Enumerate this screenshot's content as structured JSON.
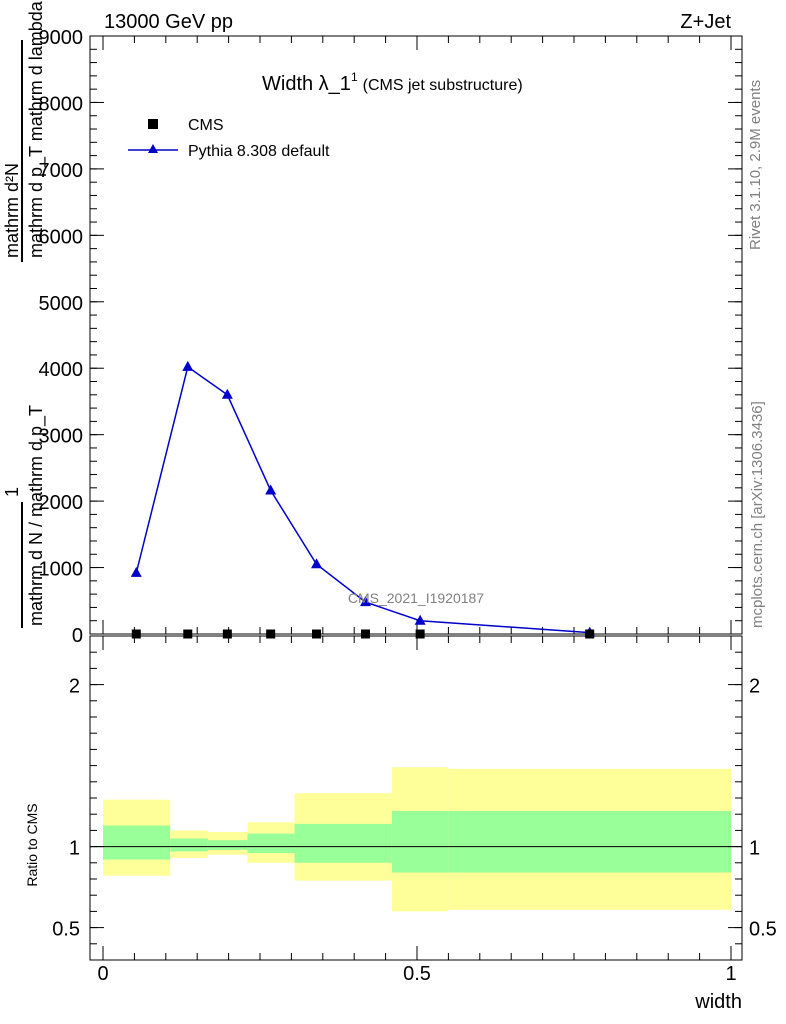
{
  "chart_data": {
    "type": "line",
    "header_left": "13000 GeV pp",
    "header_right": "Z+Jet",
    "title_main": "Width λ_1",
    "title_sup": "1",
    "title_sub": "(CMS jet substructure)",
    "ylabel_numerator": "mathrm d²N",
    "ylabel_numerator_denominator": "mathrm d p_T mathrm d lambda",
    "ylabel_one": "1",
    "ylabel_denominator": "mathrm d N / mathrm d p_T",
    "ratio_ylabel": "Ratio to CMS",
    "xlabel": "width",
    "analysis_label": "CMS_2021_I1920187",
    "side_label_top": "Rivet 3.1.10,  2.9M events",
    "side_label_bottom": "mcplots.cern.ch [arXiv:1306.3436]",
    "xlim": [
      0,
      1
    ],
    "ylim": [
      0,
      9000
    ],
    "ratio_ylim": [
      0.3,
      2.3
    ],
    "x_ticks": [
      {
        "value": 0,
        "label": "0"
      },
      {
        "value": 0.5,
        "label": "0.5"
      },
      {
        "value": 1,
        "label": "1"
      }
    ],
    "y_ticks": [
      {
        "value": 0,
        "label": "0"
      },
      {
        "value": 1000,
        "label": "1000"
      },
      {
        "value": 2000,
        "label": "2000"
      },
      {
        "value": 3000,
        "label": "3000"
      },
      {
        "value": 4000,
        "label": "4000"
      },
      {
        "value": 5000,
        "label": "5000"
      },
      {
        "value": 6000,
        "label": "6000"
      },
      {
        "value": 7000,
        "label": "7000"
      },
      {
        "value": 8000,
        "label": "8000"
      },
      {
        "value": 9000,
        "label": "9000"
      }
    ],
    "ratio_ticks": [
      {
        "value": 0.5,
        "label": "0.5"
      },
      {
        "value": 1,
        "label": "1"
      },
      {
        "value": 2,
        "label": "2"
      }
    ],
    "series": [
      {
        "name": "CMS",
        "marker": "square",
        "color": "#000000",
        "x": [
          0.053,
          0.135,
          0.198,
          0.267,
          0.34,
          0.418,
          0.505,
          0.775
        ],
        "y": [
          0,
          0,
          0,
          0,
          0,
          0,
          0,
          0
        ]
      },
      {
        "name": "Pythia 8.308 default",
        "marker": "triangle",
        "color": "#0000cc",
        "x": [
          0.053,
          0.135,
          0.198,
          0.267,
          0.34,
          0.418,
          0.505,
          0.775
        ],
        "y": [
          920,
          4020,
          3600,
          2160,
          1050,
          480,
          200,
          20
        ]
      }
    ],
    "ratio_bands": [
      {
        "x0": 0.0,
        "x1": 0.107,
        "inner": [
          0.92,
          1.13
        ],
        "outer": [
          0.82,
          1.29
        ]
      },
      {
        "x0": 0.107,
        "x1": 0.167,
        "inner": [
          0.97,
          1.05
        ],
        "outer": [
          0.93,
          1.1
        ]
      },
      {
        "x0": 0.167,
        "x1": 0.23,
        "inner": [
          0.98,
          1.04
        ],
        "outer": [
          0.95,
          1.09
        ]
      },
      {
        "x0": 0.23,
        "x1": 0.305,
        "inner": [
          0.96,
          1.08
        ],
        "outer": [
          0.9,
          1.15
        ]
      },
      {
        "x0": 0.305,
        "x1": 0.46,
        "inner": [
          0.9,
          1.14
        ],
        "outer": [
          0.79,
          1.33
        ]
      },
      {
        "x0": 0.46,
        "x1": 0.55,
        "inner": [
          0.84,
          1.22
        ],
        "outer": [
          0.6,
          1.49
        ]
      },
      {
        "x0": 0.55,
        "x1": 1.0,
        "inner": [
          0.84,
          1.22
        ],
        "outer": [
          0.61,
          1.48
        ]
      }
    ],
    "colors": {
      "band_inner": "#99ff99",
      "band_outer": "#ffff99",
      "reference_line": "#000000"
    }
  }
}
